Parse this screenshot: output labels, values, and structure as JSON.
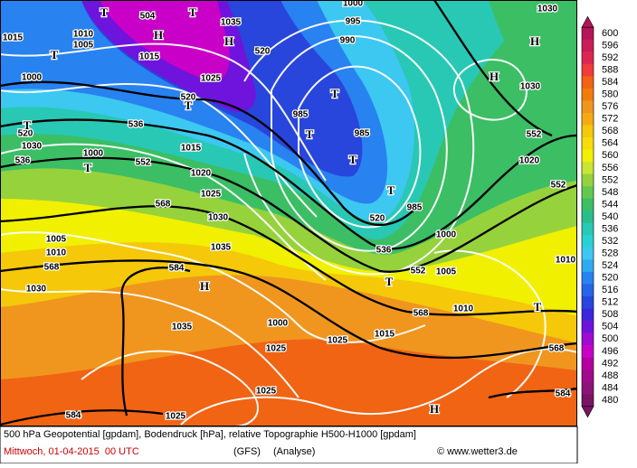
{
  "legend": {
    "levels": [
      600,
      596,
      592,
      588,
      584,
      580,
      576,
      572,
      568,
      564,
      560,
      556,
      552,
      548,
      544,
      540,
      536,
      532,
      528,
      524,
      520,
      516,
      512,
      508,
      504,
      500,
      496,
      492,
      488,
      484,
      480
    ],
    "colors": [
      "#b4145a",
      "#c81e5a",
      "#dc2850",
      "#f03c3c",
      "#f06414",
      "#f07d0a",
      "#f0961e",
      "#f5aa14",
      "#f5c80a",
      "#f5dc0a",
      "#f0f000",
      "#c8e632",
      "#96d23c",
      "#64c850",
      "#3cbe64",
      "#28be8c",
      "#28c8b4",
      "#28d2d2",
      "#3cc8f0",
      "#32aaf0",
      "#2882f0",
      "#2864e6",
      "#2846dc",
      "#3c28dc",
      "#6e14dc",
      "#a00ad2",
      "#c800c8",
      "#b400a0",
      "#a00a8c",
      "#8c1478",
      "#781464"
    ]
  },
  "map_labels": [
    "T",
    "504",
    "T",
    "1035",
    "H",
    "520",
    "1015",
    "1010",
    "1005",
    "H",
    "T",
    "1015",
    "1000",
    "1025",
    "520",
    "T",
    "536",
    "520",
    "1030",
    "T",
    "536",
    "1000",
    "T",
    "552",
    "1015",
    "1020",
    "1025",
    "568",
    "1030",
    "1035",
    "1005",
    "1010",
    "568",
    "584",
    "H",
    "1030",
    "T",
    "985",
    "T",
    "985",
    "T",
    "T",
    "985",
    "520",
    "1000",
    "536",
    "552",
    "1005",
    "T",
    "568",
    "1010",
    "1035",
    "1000",
    "1025",
    "1015",
    "1025",
    "1025",
    "584",
    "1025",
    "H",
    "584",
    "568",
    "T",
    "1010",
    "552",
    "552",
    "1020",
    "H",
    "1030",
    "H",
    "1030",
    "995",
    "990",
    "1000"
  ],
  "footer": {
    "description": "500 hPa Geopotential [gpdam], Bodendruck [hPa], relative Topographie H500-H1000 [gpdam]",
    "date": "Mittwoch, 01-04-2015  00 UTC",
    "model": "(GFS)",
    "run": "(Analyse)",
    "source": "© www.wetter3.de"
  }
}
